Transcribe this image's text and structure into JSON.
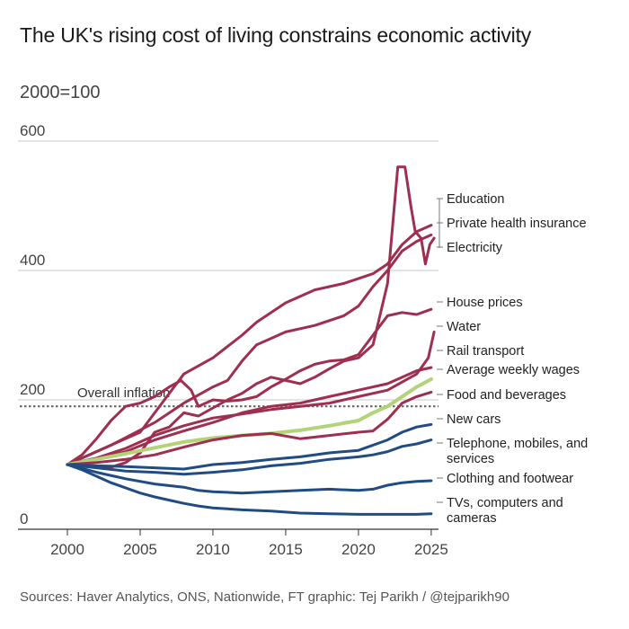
{
  "title": "The UK's rising cost of living constrains economic activity",
  "subtitle": "2000=100",
  "source": "Sources: Haver Analytics, ONS, Nationwide, FT graphic: Tej Parikh / @tejparikh90",
  "colors": {
    "maroon": "#9e2f50",
    "green": "#b3d378",
    "blue": "#204b83",
    "grid": "#c8c8c8",
    "dotted": "#666666"
  },
  "chart_data": {
    "type": "line",
    "xlim": [
      2000,
      2025.5
    ],
    "ylim": [
      0,
      600
    ],
    "x_ticks": [
      2000,
      2005,
      2010,
      2015,
      2020,
      2025
    ],
    "y_ticks": [
      0,
      200,
      400,
      600
    ],
    "reference_line": {
      "label": "Overall inflation",
      "value": 190
    },
    "series": [
      {
        "name": "Education",
        "color": "maroon",
        "width": 3,
        "points": [
          [
            2000,
            100
          ],
          [
            2002,
            120
          ],
          [
            2005,
            150
          ],
          [
            2006,
            180
          ],
          [
            2008,
            240
          ],
          [
            2010,
            265
          ],
          [
            2012,
            300
          ],
          [
            2013,
            320
          ],
          [
            2015,
            350
          ],
          [
            2017,
            370
          ],
          [
            2019,
            380
          ],
          [
            2021,
            395
          ],
          [
            2022,
            410
          ],
          [
            2023,
            440
          ],
          [
            2024,
            460
          ],
          [
            2025,
            470
          ]
        ]
      },
      {
        "name": "Private health insurance",
        "color": "maroon",
        "width": 3,
        "points": [
          [
            2000,
            100
          ],
          [
            2003,
            130
          ],
          [
            2006,
            165
          ],
          [
            2008,
            195
          ],
          [
            2010,
            220
          ],
          [
            2011,
            230
          ],
          [
            2012,
            260
          ],
          [
            2013,
            285
          ],
          [
            2015,
            305
          ],
          [
            2017,
            315
          ],
          [
            2019,
            330
          ],
          [
            2020,
            345
          ],
          [
            2021,
            375
          ],
          [
            2022,
            400
          ],
          [
            2023,
            430
          ],
          [
            2024,
            445
          ],
          [
            2025,
            455
          ]
        ]
      },
      {
        "name": "Electricity",
        "color": "maroon",
        "width": 3,
        "points": [
          [
            2000,
            100
          ],
          [
            2003,
            96
          ],
          [
            2004,
            103
          ],
          [
            2005,
            118
          ],
          [
            2006,
            150
          ],
          [
            2007,
            158
          ],
          [
            2008,
            180
          ],
          [
            2009,
            175
          ],
          [
            2011,
            200
          ],
          [
            2012,
            210
          ],
          [
            2013,
            225
          ],
          [
            2014,
            235
          ],
          [
            2015,
            230
          ],
          [
            2016,
            225
          ],
          [
            2017,
            235
          ],
          [
            2018,
            248
          ],
          [
            2019,
            260
          ],
          [
            2020,
            265
          ],
          [
            2021,
            285
          ],
          [
            2022,
            380
          ],
          [
            2022.7,
            560
          ],
          [
            2023.2,
            560
          ],
          [
            2023.6,
            500
          ],
          [
            2023.9,
            460
          ],
          [
            2024.3,
            450
          ],
          [
            2024.6,
            410
          ],
          [
            2024.9,
            440
          ],
          [
            2025.2,
            450
          ]
        ]
      },
      {
        "name": "House prices",
        "color": "maroon",
        "width": 3,
        "points": [
          [
            2000,
            100
          ],
          [
            2001,
            115
          ],
          [
            2002,
            140
          ],
          [
            2003,
            168
          ],
          [
            2004,
            190
          ],
          [
            2005,
            195
          ],
          [
            2006,
            205
          ],
          [
            2007,
            220
          ],
          [
            2007.8,
            230
          ],
          [
            2008.5,
            215
          ],
          [
            2009,
            190
          ],
          [
            2010,
            200
          ],
          [
            2011,
            198
          ],
          [
            2012,
            200
          ],
          [
            2013,
            205
          ],
          [
            2014,
            220
          ],
          [
            2015,
            232
          ],
          [
            2016,
            245
          ],
          [
            2017,
            255
          ],
          [
            2018,
            260
          ],
          [
            2019,
            262
          ],
          [
            2020,
            270
          ],
          [
            2021,
            300
          ],
          [
            2022,
            330
          ],
          [
            2023,
            335
          ],
          [
            2024,
            332
          ],
          [
            2025,
            340
          ]
        ]
      },
      {
        "name": "Water",
        "color": "maroon",
        "width": 3,
        "points": [
          [
            2000,
            100
          ],
          [
            2002,
            110
          ],
          [
            2004,
            125
          ],
          [
            2006,
            145
          ],
          [
            2008,
            160
          ],
          [
            2010,
            172
          ],
          [
            2012,
            178
          ],
          [
            2014,
            185
          ],
          [
            2016,
            190
          ],
          [
            2018,
            195
          ],
          [
            2020,
            205
          ],
          [
            2022,
            215
          ],
          [
            2024,
            240
          ],
          [
            2024.8,
            265
          ],
          [
            2025.2,
            305
          ]
        ]
      },
      {
        "name": "Rail transport",
        "color": "maroon",
        "width": 3,
        "points": [
          [
            2000,
            100
          ],
          [
            2002,
            108
          ],
          [
            2004,
            120
          ],
          [
            2006,
            138
          ],
          [
            2008,
            152
          ],
          [
            2010,
            165
          ],
          [
            2012,
            180
          ],
          [
            2014,
            190
          ],
          [
            2016,
            195
          ],
          [
            2018,
            205
          ],
          [
            2020,
            215
          ],
          [
            2022,
            225
          ],
          [
            2024,
            245
          ],
          [
            2025,
            250
          ]
        ]
      },
      {
        "name": "Average weekly wages",
        "color": "green",
        "width": 4,
        "points": [
          [
            2000,
            100
          ],
          [
            2002,
            108
          ],
          [
            2004,
            117
          ],
          [
            2006,
            126
          ],
          [
            2008,
            135
          ],
          [
            2009,
            138
          ],
          [
            2010,
            141
          ],
          [
            2012,
            145
          ],
          [
            2014,
            148
          ],
          [
            2016,
            153
          ],
          [
            2018,
            160
          ],
          [
            2020,
            168
          ],
          [
            2021,
            180
          ],
          [
            2022,
            190
          ],
          [
            2023,
            205
          ],
          [
            2024,
            220
          ],
          [
            2025,
            232
          ]
        ]
      },
      {
        "name": "Food and beverages",
        "color": "maroon",
        "width": 3,
        "points": [
          [
            2000,
            100
          ],
          [
            2002,
            103
          ],
          [
            2004,
            108
          ],
          [
            2006,
            115
          ],
          [
            2008,
            127
          ],
          [
            2010,
            138
          ],
          [
            2012,
            145
          ],
          [
            2014,
            148
          ],
          [
            2016,
            140
          ],
          [
            2018,
            145
          ],
          [
            2020,
            150
          ],
          [
            2021,
            152
          ],
          [
            2022,
            170
          ],
          [
            2023,
            195
          ],
          [
            2024,
            205
          ],
          [
            2025,
            212
          ]
        ]
      },
      {
        "name": "New cars",
        "color": "blue",
        "width": 3,
        "points": [
          [
            2000,
            100
          ],
          [
            2002,
            98
          ],
          [
            2004,
            97
          ],
          [
            2006,
            95
          ],
          [
            2008,
            93
          ],
          [
            2010,
            100
          ],
          [
            2012,
            103
          ],
          [
            2014,
            108
          ],
          [
            2016,
            112
          ],
          [
            2018,
            118
          ],
          [
            2020,
            122
          ],
          [
            2022,
            138
          ],
          [
            2023,
            150
          ],
          [
            2024,
            158
          ],
          [
            2025,
            162
          ]
        ]
      },
      {
        "name": "Telephone, mobiles, and services",
        "color": "blue",
        "width": 3,
        "points": [
          [
            2000,
            100
          ],
          [
            2002,
            95
          ],
          [
            2004,
            90
          ],
          [
            2006,
            88
          ],
          [
            2008,
            85
          ],
          [
            2010,
            88
          ],
          [
            2012,
            92
          ],
          [
            2014,
            98
          ],
          [
            2016,
            102
          ],
          [
            2018,
            108
          ],
          [
            2020,
            112
          ],
          [
            2021,
            115
          ],
          [
            2022,
            120
          ],
          [
            2023,
            128
          ],
          [
            2024,
            132
          ],
          [
            2025,
            138
          ]
        ]
      },
      {
        "name": "Clothing and footwear",
        "color": "blue",
        "width": 3,
        "points": [
          [
            2000,
            100
          ],
          [
            2002,
            88
          ],
          [
            2004,
            78
          ],
          [
            2006,
            70
          ],
          [
            2008,
            65
          ],
          [
            2009,
            60
          ],
          [
            2010,
            58
          ],
          [
            2012,
            56
          ],
          [
            2014,
            58
          ],
          [
            2016,
            60
          ],
          [
            2018,
            62
          ],
          [
            2020,
            60
          ],
          [
            2021,
            62
          ],
          [
            2022,
            68
          ],
          [
            2023,
            72
          ],
          [
            2024,
            74
          ],
          [
            2025,
            75
          ]
        ]
      },
      {
        "name": "TVs, computers and cameras",
        "color": "blue",
        "width": 3,
        "points": [
          [
            2000,
            100
          ],
          [
            2001,
            92
          ],
          [
            2002,
            82
          ],
          [
            2003,
            72
          ],
          [
            2004,
            64
          ],
          [
            2005,
            56
          ],
          [
            2006,
            50
          ],
          [
            2007,
            45
          ],
          [
            2008,
            40
          ],
          [
            2009,
            36
          ],
          [
            2010,
            33
          ],
          [
            2012,
            30
          ],
          [
            2014,
            28
          ],
          [
            2016,
            25
          ],
          [
            2018,
            24
          ],
          [
            2020,
            23
          ],
          [
            2022,
            23
          ],
          [
            2024,
            23
          ],
          [
            2025,
            24
          ]
        ]
      }
    ],
    "labels": [
      {
        "text": [
          "Education"
        ],
        "series": "Education"
      },
      {
        "text": [
          "Private health insurance"
        ],
        "series": "Private health insurance"
      },
      {
        "text": [
          "Electricity"
        ],
        "series": "Electricity"
      },
      {
        "text": [
          "House prices"
        ],
        "series": "House prices"
      },
      {
        "text": [
          "Water"
        ],
        "series": "Water"
      },
      {
        "text": [
          "Rail transport"
        ],
        "series": "Rail transport"
      },
      {
        "text": [
          "Average weekly wages"
        ],
        "series": "Average weekly wages"
      },
      {
        "text": [
          "Food and beverages"
        ],
        "series": "Food and beverages"
      },
      {
        "text": [
          "New cars"
        ],
        "series": "New cars"
      },
      {
        "text": [
          "Telephone, mobiles, and",
          "services"
        ],
        "series": "Telephone, mobiles, and services"
      },
      {
        "text": [
          "Clothing and footwear"
        ],
        "series": "Clothing and footwear"
      },
      {
        "text": [
          "TVs, computers and",
          "cameras"
        ],
        "series": "TVs, computers and cameras"
      }
    ]
  }
}
